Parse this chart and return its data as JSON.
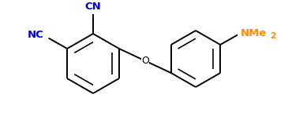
{
  "bg_color": "#ffffff",
  "bond_color": "#000000",
  "cn_color": "#0000cd",
  "nme_color": "#ff8c00",
  "lw": 1.4,
  "figsize": [
    3.65,
    1.53
  ],
  "dpi": 100,
  "xlim": [
    0,
    365
  ],
  "ylim": [
    0,
    153
  ]
}
